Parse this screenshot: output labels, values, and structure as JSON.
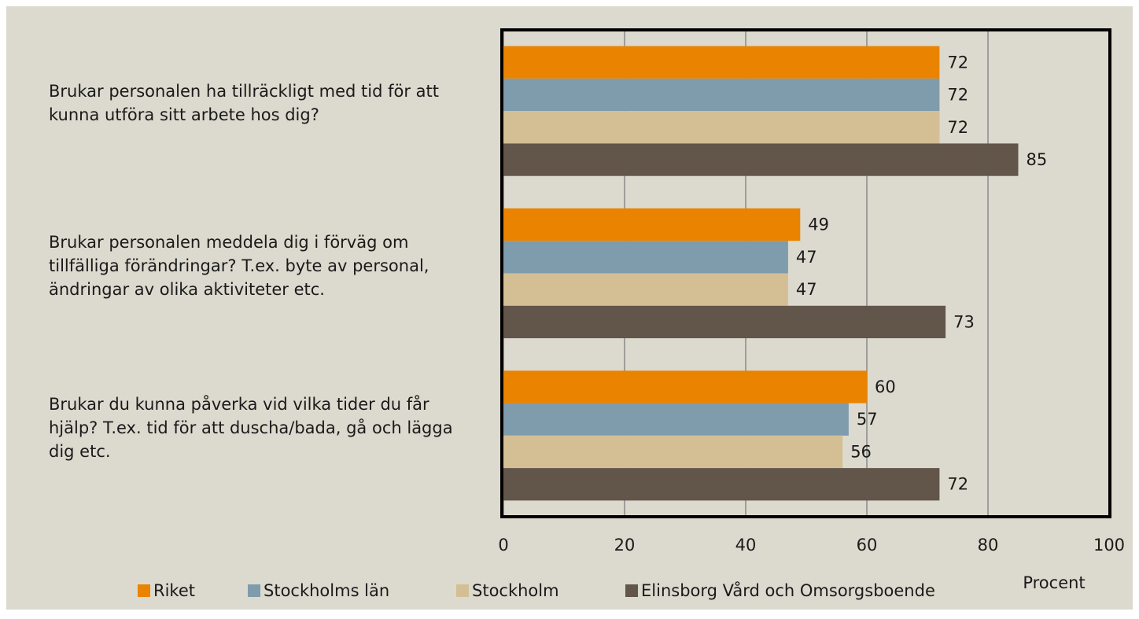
{
  "chart_data": {
    "type": "bar",
    "orientation": "horizontal",
    "categories": [
      "Brukar personalen ha tillräckligt med tid för att kunna utföra sitt arbete hos dig?",
      "Brukar personalen meddela dig i förväg om tillfälliga förändringar? T.ex. byte av personal, ändringar av olika aktiviteter etc.",
      "Brukar du kunna påverka vid vilka tider du får hjälp? T.ex. tid för att duscha/bada, gå och lägga dig etc."
    ],
    "series": [
      {
        "name": "Riket",
        "color": "#e98300",
        "values": [
          72,
          49,
          60
        ]
      },
      {
        "name": "Stockholms län",
        "color": "#7f9cac",
        "values": [
          72,
          47,
          57
        ]
      },
      {
        "name": "Stockholm",
        "color": "#d4bf95",
        "values": [
          72,
          47,
          56
        ]
      },
      {
        "name": "Elinsborg Vård och Omsorgsboende",
        "color": "#62554a",
        "values": [
          85,
          73,
          72
        ]
      }
    ],
    "xlabel": "Procent",
    "xlim": [
      0,
      100
    ],
    "xticks": [
      0,
      20,
      40,
      60,
      80,
      100
    ],
    "grid": true,
    "legend": "bottom"
  }
}
